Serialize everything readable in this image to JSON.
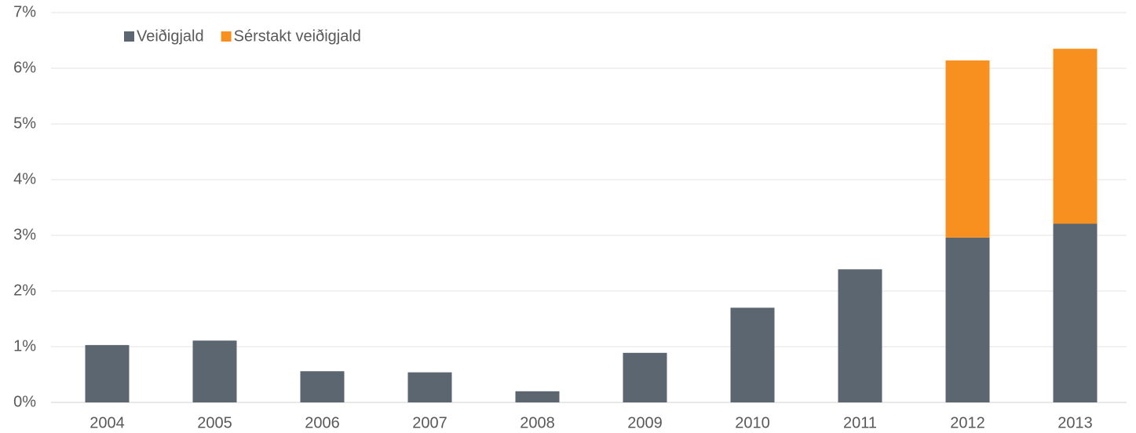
{
  "chart_data": {
    "type": "stacked_bar",
    "categories": [
      "2004",
      "2005",
      "2006",
      "2007",
      "2008",
      "2009",
      "2010",
      "2011",
      "2012",
      "2013"
    ],
    "series": [
      {
        "name": "Veiðigjald",
        "color": "#5b6670",
        "values": [
          1.03,
          1.11,
          0.56,
          0.54,
          0.2,
          0.89,
          1.7,
          2.39,
          2.96,
          3.21
        ]
      },
      {
        "name": "Sérstakt veiðigjald",
        "color": "#f7901e",
        "values": [
          null,
          null,
          null,
          null,
          null,
          null,
          null,
          null,
          3.18,
          3.14
        ]
      }
    ],
    "ylim": [
      0,
      7
    ],
    "yticks": [
      {
        "value": 0,
        "label": "0%"
      },
      {
        "value": 1,
        "label": "1%"
      },
      {
        "value": 2,
        "label": "2%"
      },
      {
        "value": 3,
        "label": "3%"
      },
      {
        "value": 4,
        "label": "4%"
      },
      {
        "value": 5,
        "label": "5%"
      },
      {
        "value": 6,
        "label": "6%"
      },
      {
        "value": 7,
        "label": "7%"
      }
    ],
    "grid": true,
    "legend": "top-left"
  }
}
